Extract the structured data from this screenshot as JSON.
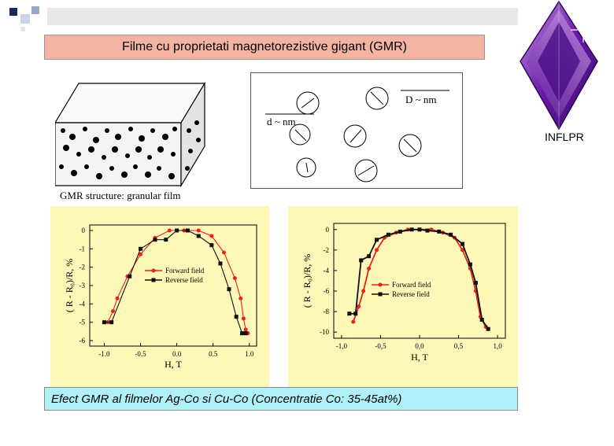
{
  "header": {
    "title": "Filme cu proprietati magnetorezistive gigant  (GMR)"
  },
  "logo": {
    "label": "INFLPR",
    "icon": "purple-diamond-crystal"
  },
  "structure_figure": {
    "caption": "GMR structure: granular film",
    "labels": {
      "d": "d ~ nm",
      "D": "D ~ nm"
    }
  },
  "chart_data": [
    {
      "type": "line",
      "xlabel": "H, T",
      "ylabel": "( R - R₀)/R, %",
      "xticks": [
        "-1.0",
        "-0.5",
        "0.0",
        "0.5",
        "1.0"
      ],
      "yticks": [
        "0",
        "-1",
        "-2",
        "-3",
        "-4",
        "-5",
        "-6"
      ],
      "xlim": [
        -1.2,
        1.1
      ],
      "ylim": [
        -6.3,
        0.3
      ],
      "legend_position": "middle-center",
      "series": [
        {
          "name": "Forward field",
          "color": "#e8221e",
          "marker": "circle",
          "x": [
            -0.95,
            -0.88,
            -0.82,
            -0.68,
            -0.5,
            -0.3,
            -0.1,
            0.1,
            0.3,
            0.48,
            0.65,
            0.8,
            0.88,
            0.92,
            0.95,
            0.98
          ],
          "y": [
            -5.0,
            -4.4,
            -3.7,
            -2.5,
            -1.3,
            -0.4,
            0.0,
            0.0,
            0.0,
            -0.3,
            -1.2,
            -2.6,
            -3.7,
            -4.8,
            -5.4,
            -5.6
          ]
        },
        {
          "name": "Reverse field",
          "color": "#111111",
          "marker": "square",
          "x": [
            -1.0,
            -0.9,
            -0.65,
            -0.5,
            -0.3,
            -0.15,
            0.0,
            0.15,
            0.3,
            0.48,
            0.6,
            0.72,
            0.82,
            0.9,
            0.95
          ],
          "y": [
            -5.0,
            -5.0,
            -2.5,
            -1.0,
            -0.5,
            -0.5,
            0.0,
            0.0,
            -0.3,
            -0.8,
            -1.8,
            -3.2,
            -4.7,
            -5.6,
            -5.6
          ]
        }
      ]
    },
    {
      "type": "line",
      "xlabel": "H, T",
      "ylabel": "( R - R₀)/R, %",
      "xticks": [
        "-1,0",
        "-0,5",
        "0,0",
        "0,5",
        "1,0"
      ],
      "yticks": [
        "0",
        "-2",
        "-4",
        "-6",
        "-8",
        "-10"
      ],
      "xlim": [
        -1.1,
        1.1
      ],
      "ylim": [
        -10.6,
        0.6
      ],
      "legend_position": "bottom-right",
      "series": [
        {
          "name": "Forward field",
          "color": "#e8221e",
          "marker": "circle",
          "x": [
            -0.85,
            -0.78,
            -0.72,
            -0.65,
            -0.55,
            -0.45,
            -0.3,
            -0.15,
            0.0,
            0.15,
            0.3,
            0.45,
            0.55,
            0.65,
            0.72,
            0.78,
            0.85
          ],
          "y": [
            -9.0,
            -7.5,
            -6.0,
            -3.8,
            -2.0,
            -0.8,
            -0.3,
            0.0,
            0.0,
            0.0,
            -0.3,
            -0.8,
            -2.0,
            -3.8,
            -6.0,
            -8.5,
            -9.5
          ]
        },
        {
          "name": "Reverse field",
          "color": "#111111",
          "marker": "square",
          "x": [
            -0.9,
            -0.82,
            -0.75,
            -0.65,
            -0.55,
            -0.4,
            -0.25,
            -0.1,
            0.0,
            0.1,
            0.25,
            0.4,
            0.55,
            0.65,
            0.72,
            0.8,
            0.88
          ],
          "y": [
            -8.2,
            -8.2,
            -3.0,
            -2.6,
            -1.0,
            -0.5,
            -0.2,
            0.0,
            0.0,
            -0.1,
            -0.2,
            -0.5,
            -1.4,
            -3.4,
            -5.2,
            -8.8,
            -9.7
          ]
        }
      ]
    }
  ],
  "caption": "Efect GMR al filmelor Ag-Co si Cu-Co  (Concentratie Co: 35-45at%)"
}
